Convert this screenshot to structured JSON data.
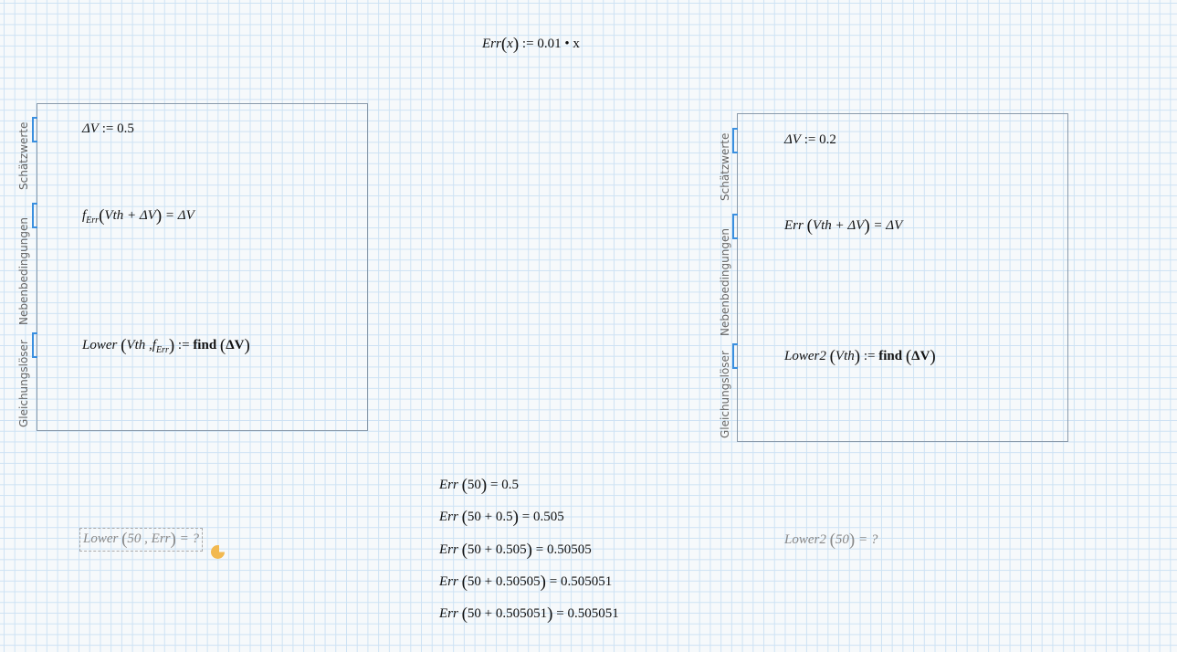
{
  "definition": {
    "name": "Err",
    "arg": "x",
    "op": ":=",
    "expr": "0.01 • x"
  },
  "solve_block_1": {
    "labels": {
      "guess": "Schätzwerte",
      "constraints": "Nebenbedingungen",
      "solver": "Gleichungslöser"
    },
    "guess": {
      "var": "ΔV",
      "op": ":=",
      "value": "0.5"
    },
    "constraint": {
      "fn": "f",
      "sub": "Err",
      "arg": "Vth + ΔV",
      "rhs": "= ΔV"
    },
    "solver": {
      "name": "Lower",
      "args": "Vth ,",
      "fn": "f",
      "sub": "Err",
      "op": ":=",
      "call": "find",
      "call_arg": "ΔV"
    }
  },
  "solve_block_2": {
    "labels": {
      "guess": "Schätzwerte",
      "constraints": "Nebenbedingungen",
      "solver": "Gleichungslöser"
    },
    "guess": {
      "var": "ΔV",
      "op": ":=",
      "value": "0.2"
    },
    "constraint": {
      "fn": "Err",
      "arg": "Vth + ΔV",
      "rhs": "= ΔV"
    },
    "solver": {
      "name": "Lower2",
      "args": "Vth",
      "op": ":=",
      "call": "find",
      "call_arg": "ΔV"
    }
  },
  "evaluations": [
    {
      "arg": "50",
      "result": "0.5"
    },
    {
      "arg": "50 + 0.5",
      "result": "0.505"
    },
    {
      "arg": "50 + 0.505",
      "result": "0.50505"
    },
    {
      "arg": "50 + 0.50505",
      "result": "0.505051"
    },
    {
      "arg": "50 + 0.505051",
      "result": "0.505051"
    }
  ],
  "pending_1": {
    "name": "Lower",
    "args": "50 , Err",
    "result": "= ?"
  },
  "pending_2": {
    "name": "Lower2",
    "args": "50",
    "result": "= ?"
  },
  "fn_name": "Err",
  "colors": {
    "bracket": "#3a8fdf",
    "grid": "#cde2f4",
    "warning": "#f2b950"
  }
}
